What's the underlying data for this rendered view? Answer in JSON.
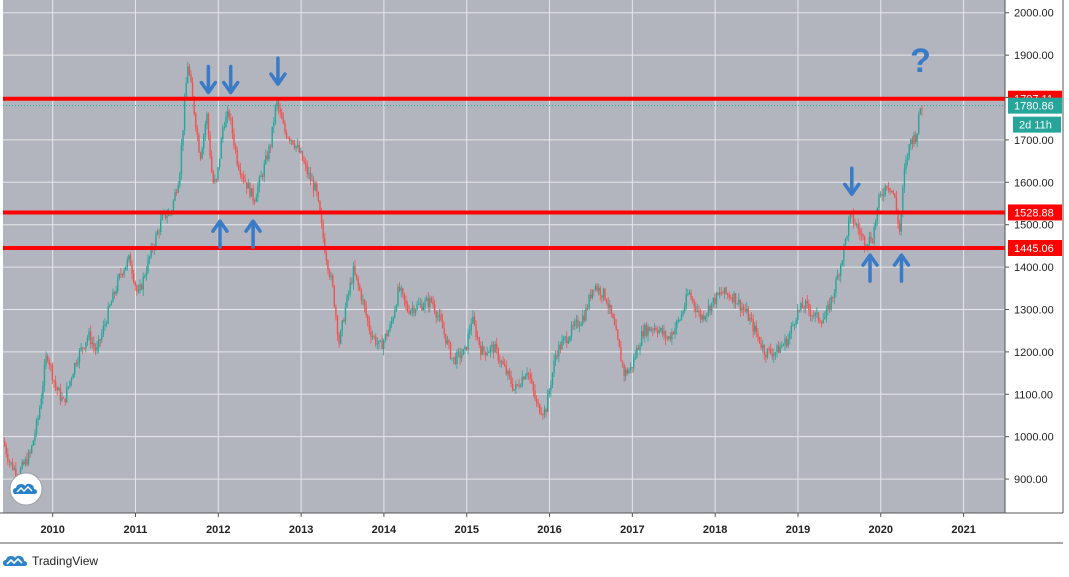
{
  "chart_data": {
    "type": "candlestick",
    "y_ticks": [
      900,
      1000,
      1100,
      1200,
      1300,
      1400,
      1500,
      1600,
      1700,
      1800,
      1900,
      2000
    ],
    "y_tick_labels": [
      "900.00",
      "1000.00",
      "1100.00",
      "1200.00",
      "1300.00",
      "1400.00",
      "1500.00",
      "1600.00",
      "1700.00",
      "1800.00",
      "1900.00",
      "2000.00"
    ],
    "x_tick_labels": [
      "2010",
      "2011",
      "2012",
      "2013",
      "2014",
      "2015",
      "2016",
      "2017",
      "2018",
      "2019",
      "2020",
      "2021"
    ],
    "x_ticks": [
      2010,
      2011,
      2012,
      2013,
      2014,
      2015,
      2016,
      2017,
      2018,
      2019,
      2020,
      2021
    ],
    "ylim": [
      820,
      2030
    ],
    "xlim": [
      2009.4,
      2021.5
    ],
    "price_path": [
      [
        2009.42,
        990
      ],
      [
        2009.5,
        940
      ],
      [
        2009.6,
        910
      ],
      [
        2009.75,
        960
      ],
      [
        2009.85,
        1050
      ],
      [
        2009.95,
        1200
      ],
      [
        2010.05,
        1120
      ],
      [
        2010.15,
        1080
      ],
      [
        2010.3,
        1180
      ],
      [
        2010.45,
        1240
      ],
      [
        2010.55,
        1200
      ],
      [
        2010.7,
        1300
      ],
      [
        2010.85,
        1390
      ],
      [
        2010.95,
        1420
      ],
      [
        2011.05,
        1330
      ],
      [
        2011.2,
        1430
      ],
      [
        2011.35,
        1520
      ],
      [
        2011.45,
        1530
      ],
      [
        2011.55,
        1620
      ],
      [
        2011.65,
        1880
      ],
      [
        2011.72,
        1780
      ],
      [
        2011.8,
        1660
      ],
      [
        2011.88,
        1760
      ],
      [
        2011.95,
        1600
      ],
      [
        2012.0,
        1600
      ],
      [
        2012.08,
        1740
      ],
      [
        2012.15,
        1760
      ],
      [
        2012.25,
        1650
      ],
      [
        2012.35,
        1600
      ],
      [
        2012.45,
        1560
      ],
      [
        2012.55,
        1620
      ],
      [
        2012.65,
        1690
      ],
      [
        2012.72,
        1790
      ],
      [
        2012.82,
        1720
      ],
      [
        2012.92,
        1700
      ],
      [
        2013.0,
        1670
      ],
      [
        2013.1,
        1620
      ],
      [
        2013.2,
        1580
      ],
      [
        2013.3,
        1450
      ],
      [
        2013.4,
        1350
      ],
      [
        2013.48,
        1220
      ],
      [
        2013.55,
        1300
      ],
      [
        2013.65,
        1390
      ],
      [
        2013.75,
        1330
      ],
      [
        2013.85,
        1250
      ],
      [
        2013.97,
        1210
      ],
      [
        2014.1,
        1260
      ],
      [
        2014.2,
        1350
      ],
      [
        2014.3,
        1300
      ],
      [
        2014.45,
        1310
      ],
      [
        2014.6,
        1320
      ],
      [
        2014.72,
        1260
      ],
      [
        2014.85,
        1180
      ],
      [
        2015.0,
        1200
      ],
      [
        2015.08,
        1280
      ],
      [
        2015.2,
        1200
      ],
      [
        2015.35,
        1210
      ],
      [
        2015.5,
        1150
      ],
      [
        2015.6,
        1110
      ],
      [
        2015.75,
        1160
      ],
      [
        2015.87,
        1070
      ],
      [
        2015.97,
        1060
      ],
      [
        2016.1,
        1200
      ],
      [
        2016.25,
        1240
      ],
      [
        2016.45,
        1290
      ],
      [
        2016.55,
        1360
      ],
      [
        2016.7,
        1330
      ],
      [
        2016.8,
        1260
      ],
      [
        2016.92,
        1150
      ],
      [
        2017.0,
        1160
      ],
      [
        2017.15,
        1250
      ],
      [
        2017.3,
        1260
      ],
      [
        2017.45,
        1230
      ],
      [
        2017.6,
        1280
      ],
      [
        2017.7,
        1340
      ],
      [
        2017.85,
        1280
      ],
      [
        2018.0,
        1320
      ],
      [
        2018.1,
        1340
      ],
      [
        2018.25,
        1330
      ],
      [
        2018.4,
        1290
      ],
      [
        2018.5,
        1250
      ],
      [
        2018.62,
        1200
      ],
      [
        2018.75,
        1200
      ],
      [
        2018.9,
        1230
      ],
      [
        2019.0,
        1290
      ],
      [
        2019.1,
        1310
      ],
      [
        2019.25,
        1280
      ],
      [
        2019.35,
        1280
      ],
      [
        2019.45,
        1340
      ],
      [
        2019.55,
        1420
      ],
      [
        2019.65,
        1520
      ],
      [
        2019.72,
        1500
      ],
      [
        2019.82,
        1460
      ],
      [
        2019.92,
        1470
      ],
      [
        2020.0,
        1560
      ],
      [
        2020.1,
        1600
      ],
      [
        2020.18,
        1570
      ],
      [
        2020.25,
        1480
      ],
      [
        2020.3,
        1620
      ],
      [
        2020.38,
        1700
      ],
      [
        2020.45,
        1710
      ],
      [
        2020.5,
        1780
      ]
    ],
    "horizontal_levels": [
      1797.11,
      1528.88,
      1445.06
    ],
    "level_labels": [
      "1797.11",
      "1528.88",
      "1445.06"
    ],
    "current_price": 1780.86,
    "current_price_label": "1780.86",
    "countdown_label": "2d 11h",
    "annotations": {
      "down_arrows": [
        [
          2011.88,
          1840
        ],
        [
          2012.15,
          1840
        ],
        [
          2012.72,
          1860
        ],
        [
          2019.65,
          1600
        ]
      ],
      "up_arrows": [
        [
          2012.02,
          1480
        ],
        [
          2012.42,
          1480
        ],
        [
          2019.87,
          1400
        ],
        [
          2020.25,
          1400
        ]
      ],
      "question_mark": [
        2020.48,
        1860
      ]
    },
    "grid": true
  },
  "colors": {
    "plot_bg": "#b2b5be",
    "grid": "#e6e7ea",
    "axis_bg": "#ffffff",
    "up": "#26a69a",
    "down": "#ef5350",
    "level_line": "#ff0000",
    "level_tag": "#ff0000",
    "current_tag": "#26a69a",
    "arrow": "#3a7bc8"
  },
  "brand": {
    "name": "TradingView"
  }
}
